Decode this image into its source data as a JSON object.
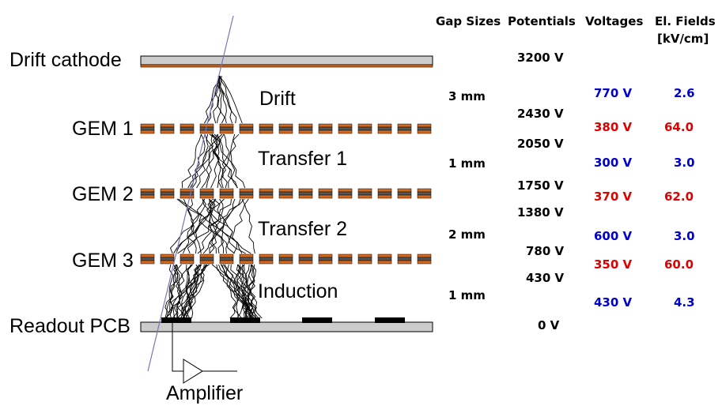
{
  "headers": {
    "gap_sizes": "Gap Sizes",
    "potentials": "Potentials",
    "voltages": "Voltages",
    "fields_line1": "El. Fields",
    "fields_line2": "[kV/cm]"
  },
  "layers": {
    "drift_cathode": "Drift cathode",
    "gem1": "GEM 1",
    "gem2": "GEM 2",
    "gem3": "GEM 3",
    "readout": "Readout PCB"
  },
  "regions": {
    "drift": "Drift",
    "transfer1": "Transfer 1",
    "transfer2": "Transfer 2",
    "induction": "Induction"
  },
  "amplifier": "Amplifier",
  "gaps": [
    "3 mm",
    "1 mm",
    "2 mm",
    "1 mm"
  ],
  "potentials": [
    "3200 V",
    "2430 V",
    "2050 V",
    "1750 V",
    "1380 V",
    "780 V",
    "430 V",
    "0 V"
  ],
  "voltages": [
    "770 V",
    "380 V",
    "300 V",
    "370 V",
    "600 V",
    "350 V",
    "430 V"
  ],
  "fields": [
    "2.6",
    "64.0",
    "3.0",
    "62.0",
    "3.0",
    "60.0",
    "4.3"
  ],
  "colors": {
    "drift_field": "#0000cc",
    "gem_field": "#e00000",
    "electrode": "#cccccc",
    "copper": "#d2691e",
    "track": "#7777bb"
  }
}
